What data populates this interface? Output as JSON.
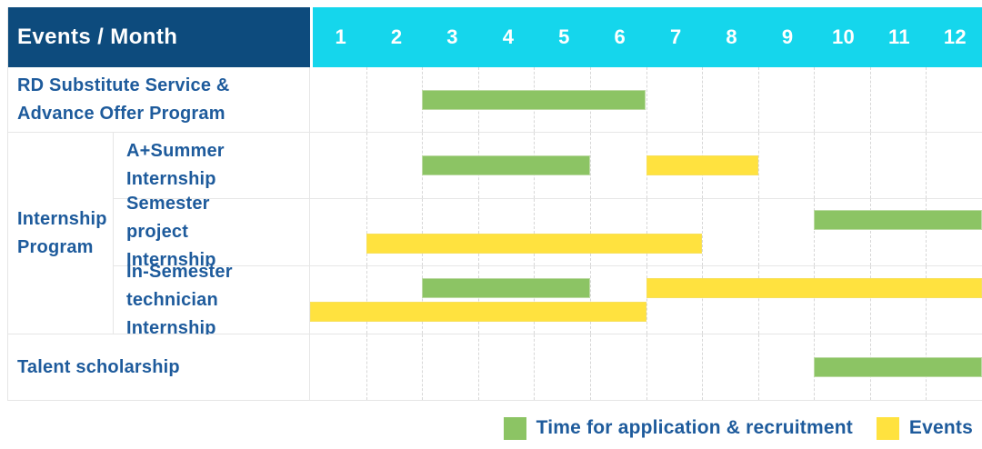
{
  "header": {
    "corner_label": "Events / Month",
    "months": [
      "1",
      "2",
      "3",
      "4",
      "5",
      "6",
      "7",
      "8",
      "9",
      "10",
      "11",
      "12"
    ]
  },
  "groups": {
    "internship": "Internship Program"
  },
  "colors": {
    "header_bg": "#0d4b7d",
    "month_header_bg": "#15d6ec",
    "label_text": "#1e5b9c",
    "recruitment": "#8cc464",
    "event": "#ffe23f",
    "grid_line": "#e6e6e6"
  },
  "legend": {
    "recruitment": {
      "label": "Time for application & recruitment",
      "color": "#8cc464"
    },
    "event": {
      "label": "Events",
      "color": "#ffe23f"
    }
  },
  "chart_data": {
    "type": "table",
    "subtype": "gantt-timeline",
    "title": "Events / Month",
    "x_axis": {
      "label": "Month",
      "ticks": [
        1,
        2,
        3,
        4,
        5,
        6,
        7,
        8,
        9,
        10,
        11,
        12
      ]
    },
    "legend_position": "bottom-right",
    "series": [
      {
        "key": "recruitment",
        "name": "Time for application & recruitment",
        "color": "#8cc464"
      },
      {
        "key": "event",
        "name": "Events",
        "color": "#ffe23f"
      }
    ],
    "rows": [
      {
        "event": "RD Substitute Service & Advance Offer Program",
        "group": "",
        "bars": [
          {
            "series": "recruitment",
            "start_month": 3,
            "end_month": 6,
            "lane": "center"
          }
        ]
      },
      {
        "event": "A+Summer Internship",
        "group": "Internship Program",
        "bars": [
          {
            "series": "recruitment",
            "start_month": 3,
            "end_month": 5,
            "lane": "center"
          },
          {
            "series": "event",
            "start_month": 7,
            "end_month": 8,
            "lane": "center"
          }
        ]
      },
      {
        "event": "Semester project Internship",
        "group": "Internship Program",
        "bars": [
          {
            "series": "recruitment",
            "start_month": 10,
            "end_month": 12,
            "lane": "top"
          },
          {
            "series": "event",
            "start_month": 2,
            "end_month": 7,
            "lane": "bottom"
          }
        ]
      },
      {
        "event": "In-Semester technician Internship",
        "group": "Internship Program",
        "bars": [
          {
            "series": "recruitment",
            "start_month": 3,
            "end_month": 5,
            "lane": "top"
          },
          {
            "series": "event",
            "start_month": 7,
            "end_month": 12,
            "lane": "top"
          },
          {
            "series": "event",
            "start_month": 1,
            "end_month": 6,
            "lane": "bottom"
          }
        ]
      },
      {
        "event": "Talent scholarship",
        "group": "",
        "bars": [
          {
            "series": "recruitment",
            "start_month": 10,
            "end_month": 12,
            "lane": "center"
          }
        ]
      }
    ]
  }
}
